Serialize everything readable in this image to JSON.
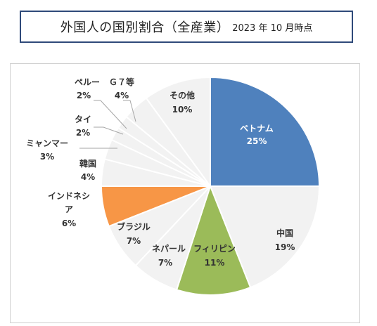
{
  "header": {
    "title": "外国人の国別割合（全産業）",
    "subtitle": "2023 年 10 月時点"
  },
  "chart_data": {
    "type": "pie",
    "title": "外国人の国別割合（全産業）2023 年 10 月時点",
    "slices": [
      {
        "name": "ベトナム",
        "value": 25,
        "label": "25%",
        "color": "#4f81bd"
      },
      {
        "name": "中国",
        "value": 19,
        "label": "19%",
        "color": "#f2f2f2"
      },
      {
        "name": "フィリピン",
        "value": 11,
        "label": "11%",
        "color": "#9bbb59"
      },
      {
        "name": "ネパール",
        "value": 7,
        "label": "7%",
        "color": "#f2f2f2"
      },
      {
        "name": "ブラジル",
        "value": 7,
        "label": "7%",
        "color": "#f2f2f2"
      },
      {
        "name": "インドネシア",
        "value": 6,
        "label": "6%",
        "color": "#f79646"
      },
      {
        "name": "韓国",
        "value": 4,
        "label": "4%",
        "color": "#f2f2f2"
      },
      {
        "name": "ミャンマー",
        "value": 3,
        "label": "3%",
        "color": "#f2f2f2"
      },
      {
        "name": "タイ",
        "value": 2,
        "label": "2%",
        "color": "#f2f2f2"
      },
      {
        "name": "ペルー",
        "value": 2,
        "label": "2%",
        "color": "#f2f2f2"
      },
      {
        "name": "Ｇ７等",
        "value": 4,
        "label": "4%",
        "color": "#f2f2f2"
      },
      {
        "name": "その他",
        "value": 10,
        "label": "10%",
        "color": "#f2f2f2"
      }
    ]
  }
}
